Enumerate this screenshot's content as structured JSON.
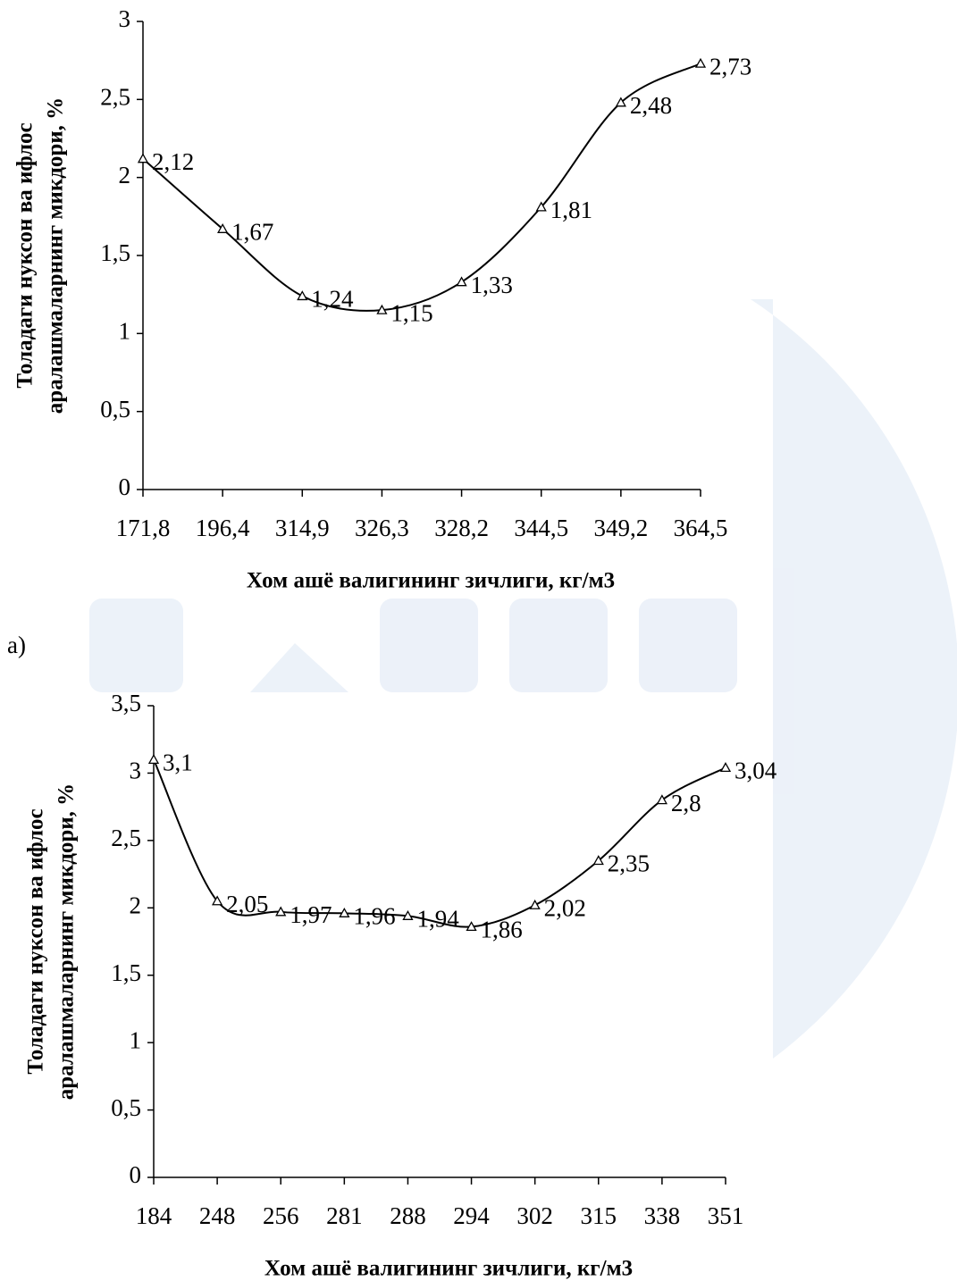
{
  "panel_label": "a)",
  "chart_data": [
    {
      "type": "line",
      "ylabel": [
        "Толадаги нуксон ва ифлос",
        "аралашмаларнинг микдори, %"
      ],
      "xlabel": "Хом ашё валигининг зичлиги, кг/м3",
      "categories": [
        "171,8",
        "196,4",
        "314,9",
        "326,3",
        "328,2",
        "344,5",
        "349,2",
        "364,5"
      ],
      "values": [
        2.12,
        1.67,
        1.24,
        1.15,
        1.33,
        1.81,
        2.48,
        2.73
      ],
      "value_labels": [
        "2,12",
        "1,67",
        "1,24",
        "1,15",
        "1,33",
        "1,81",
        "2,48",
        "2,73"
      ],
      "color": "#000000",
      "ylim": [
        0,
        3
      ],
      "yticks": [
        0,
        {
          "value": 0.5,
          "label": "0,5"
        },
        1,
        {
          "value": 1.5,
          "label": "1,5"
        },
        2,
        {
          "value": 2.5,
          "label": "2,5"
        },
        3
      ]
    },
    {
      "type": "line",
      "ylabel": [
        "Толадаги нуксон ва ифлос",
        "аралашмаларнинг микдори, %"
      ],
      "xlabel": "Хом ашё валигининг зичлиги, кг/м3",
      "categories": [
        "184",
        "248",
        "256",
        "281",
        "288",
        "294",
        "302",
        "315",
        "338",
        "351"
      ],
      "values": [
        3.1,
        2.05,
        1.97,
        1.96,
        1.94,
        1.86,
        2.02,
        2.35,
        2.8,
        3.04
      ],
      "value_labels": [
        "3,1",
        "2,05",
        "1,97",
        "1,96",
        "1,94",
        "1,86",
        "2,02",
        "2,35",
        "2,8",
        "3,04"
      ],
      "color": "#000000",
      "ylim": [
        0,
        3.5
      ],
      "yticks": [
        0,
        {
          "value": 0.5,
          "label": "0,5"
        },
        1,
        {
          "value": 1.5,
          "label": "1,5"
        },
        2,
        {
          "value": 2.5,
          "label": "2,5"
        },
        3,
        {
          "value": 3.5,
          "label": "3,5"
        }
      ]
    }
  ]
}
